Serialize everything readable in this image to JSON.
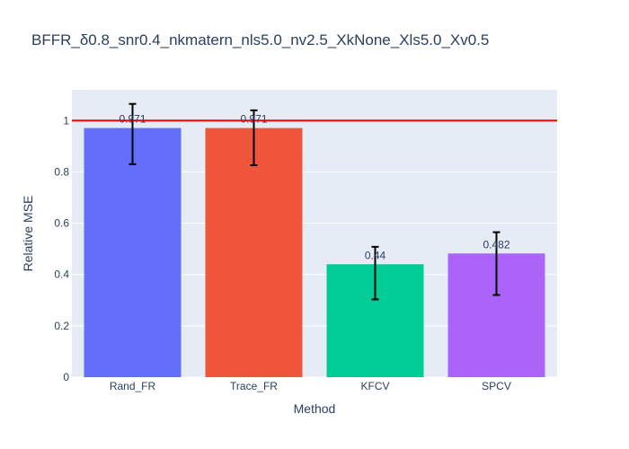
{
  "chart_data": {
    "type": "bar",
    "title": "BFFR_δ0.8_snr0.4_nkmatern_nls5.0_nv2.5_XkNone_Xls5.0_Xv0.5",
    "xlabel": "Method",
    "ylabel": "Relative MSE",
    "categories": [
      "Rand_FR",
      "Trace_FR",
      "KFCV",
      "SPCV"
    ],
    "values": [
      0.971,
      0.971,
      0.44,
      0.482
    ],
    "value_labels": [
      "0.971",
      "0.971",
      "0.44",
      "0.482"
    ],
    "error_upper": [
      1.065,
      1.04,
      0.508,
      0.565
    ],
    "error_lower": [
      0.83,
      0.826,
      0.303,
      0.32
    ],
    "colors": [
      "#636efa",
      "#ef553b",
      "#00cc96",
      "#ab63fa"
    ],
    "ylim": [
      0,
      1.12
    ],
    "yticks": [
      0,
      0.2,
      0.4,
      0.6,
      0.8,
      1
    ],
    "ytick_labels": [
      "0",
      "0.2",
      "0.4",
      "0.6",
      "0.8",
      "1"
    ],
    "reference_line": {
      "y": 1,
      "color": "#ff0000"
    },
    "grid": true,
    "background_color": "#e5ecf6"
  }
}
